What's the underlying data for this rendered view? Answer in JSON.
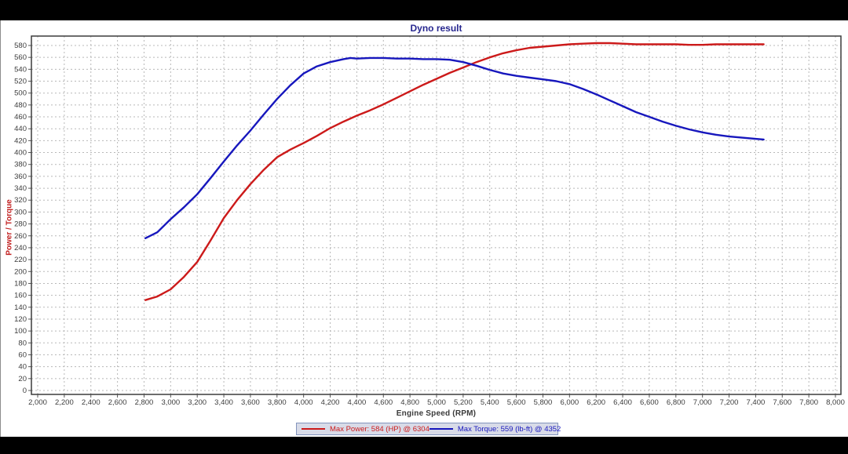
{
  "window": {
    "top_bar_color": "#000000",
    "bottom_bar_color": "#000000",
    "panel_background": "#ffffff"
  },
  "colors": {
    "title": "#27278f",
    "power_line": "#cc1a1a",
    "torque_line": "#1717bd",
    "grid": "#b8b8b8",
    "axis_border": "#3c3c3c",
    "tick_mark": "#555555",
    "tick_text": "#3d3d3d",
    "legend_background": "#d8dbe8",
    "legend_border": "#8394bc",
    "y_axis_title": "#c22222",
    "x_axis_title": "#3a3a3a"
  },
  "chart_data": {
    "type": "line",
    "title": "Dyno result",
    "xlabel": "Engine Speed (RPM)",
    "ylabel": "Power / Torque",
    "xlim": [
      2000,
      8000
    ],
    "ylim": [
      0,
      580
    ],
    "x_tick_step": 200,
    "y_tick_step": 20,
    "x_ticks": [
      2000,
      2200,
      2400,
      2600,
      2800,
      3000,
      3200,
      3400,
      3600,
      3800,
      4000,
      4200,
      4400,
      4600,
      4800,
      5000,
      5200,
      5400,
      5600,
      5800,
      6000,
      6200,
      6400,
      6600,
      6800,
      7000,
      7200,
      7400,
      7600,
      7800,
      8000
    ],
    "x_tick_labels": [
      "2,000",
      "2,200",
      "2,400",
      "2,600",
      "2,800",
      "3,000",
      "3,200",
      "3,400",
      "3,600",
      "3,800",
      "4,000",
      "4,200",
      "4,400",
      "4,600",
      "4,800",
      "5,000",
      "5,200",
      "5,400",
      "5,600",
      "5,800",
      "6,000",
      "6,200",
      "6,400",
      "6,600",
      "6,800",
      "7,000",
      "7,200",
      "7,400",
      "7,600",
      "7,800",
      "8,000"
    ],
    "y_ticks": [
      0,
      20,
      40,
      60,
      80,
      100,
      120,
      140,
      160,
      180,
      200,
      220,
      240,
      260,
      280,
      300,
      320,
      340,
      360,
      380,
      400,
      420,
      440,
      460,
      480,
      500,
      520,
      540,
      560,
      580
    ],
    "grid": true,
    "legend_position": "bottom-center",
    "series": [
      {
        "name": "Max Power: 584 (HP) @ 6304",
        "unit": "HP",
        "color": "#cc1a1a",
        "points": [
          [
            2810,
            152
          ],
          [
            2900,
            158
          ],
          [
            3000,
            170
          ],
          [
            3100,
            191
          ],
          [
            3200,
            216
          ],
          [
            3300,
            252
          ],
          [
            3400,
            290
          ],
          [
            3500,
            320
          ],
          [
            3600,
            347
          ],
          [
            3700,
            371
          ],
          [
            3800,
            392
          ],
          [
            3900,
            405
          ],
          [
            4000,
            416
          ],
          [
            4100,
            428
          ],
          [
            4200,
            441
          ],
          [
            4300,
            452
          ],
          [
            4400,
            462
          ],
          [
            4500,
            471
          ],
          [
            4600,
            481
          ],
          [
            4700,
            492
          ],
          [
            4800,
            503
          ],
          [
            4900,
            514
          ],
          [
            5000,
            524
          ],
          [
            5100,
            534
          ],
          [
            5200,
            543
          ],
          [
            5300,
            552
          ],
          [
            5400,
            560
          ],
          [
            5500,
            567
          ],
          [
            5600,
            572
          ],
          [
            5700,
            576
          ],
          [
            5800,
            578
          ],
          [
            5900,
            580
          ],
          [
            6000,
            582
          ],
          [
            6100,
            583
          ],
          [
            6200,
            584
          ],
          [
            6304,
            584
          ],
          [
            6400,
            583
          ],
          [
            6500,
            582
          ],
          [
            6600,
            582
          ],
          [
            6700,
            582
          ],
          [
            6800,
            582
          ],
          [
            6900,
            581
          ],
          [
            7000,
            581
          ],
          [
            7100,
            582
          ],
          [
            7200,
            582
          ],
          [
            7300,
            582
          ],
          [
            7400,
            582
          ],
          [
            7460,
            582
          ]
        ]
      },
      {
        "name": "Max Torque: 559 (lb-ft) @ 4352",
        "unit": "lb-ft",
        "color": "#1717bd",
        "points": [
          [
            2810,
            256
          ],
          [
            2900,
            266
          ],
          [
            3000,
            288
          ],
          [
            3100,
            308
          ],
          [
            3200,
            330
          ],
          [
            3300,
            357
          ],
          [
            3400,
            385
          ],
          [
            3500,
            412
          ],
          [
            3600,
            437
          ],
          [
            3700,
            464
          ],
          [
            3800,
            490
          ],
          [
            3900,
            513
          ],
          [
            4000,
            533
          ],
          [
            4100,
            545
          ],
          [
            4200,
            552
          ],
          [
            4300,
            557
          ],
          [
            4352,
            559
          ],
          [
            4400,
            558
          ],
          [
            4500,
            559
          ],
          [
            4600,
            559
          ],
          [
            4700,
            558
          ],
          [
            4800,
            558
          ],
          [
            4900,
            557
          ],
          [
            5000,
            557
          ],
          [
            5100,
            556
          ],
          [
            5200,
            552
          ],
          [
            5300,
            546
          ],
          [
            5400,
            539
          ],
          [
            5500,
            533
          ],
          [
            5600,
            529
          ],
          [
            5700,
            526
          ],
          [
            5800,
            523
          ],
          [
            5900,
            520
          ],
          [
            6000,
            515
          ],
          [
            6100,
            507
          ],
          [
            6200,
            498
          ],
          [
            6300,
            488
          ],
          [
            6400,
            478
          ],
          [
            6500,
            468
          ],
          [
            6600,
            460
          ],
          [
            6700,
            452
          ],
          [
            6800,
            445
          ],
          [
            6900,
            439
          ],
          [
            7000,
            434
          ],
          [
            7100,
            430
          ],
          [
            7200,
            427
          ],
          [
            7300,
            425
          ],
          [
            7400,
            423
          ],
          [
            7460,
            422
          ]
        ]
      }
    ],
    "annotations": {
      "max_power": {
        "value": 584,
        "unit": "HP",
        "rpm": 6304
      },
      "max_torque": {
        "value": 559,
        "unit": "lb-ft",
        "rpm": 4352
      }
    }
  },
  "legend": {
    "items": [
      {
        "label": "Max Power: 584 (HP) @ 6304",
        "color": "#cc1a1a"
      },
      {
        "label": "Max Torque: 559 (lb-ft) @ 4352",
        "color": "#1717bd"
      }
    ]
  }
}
